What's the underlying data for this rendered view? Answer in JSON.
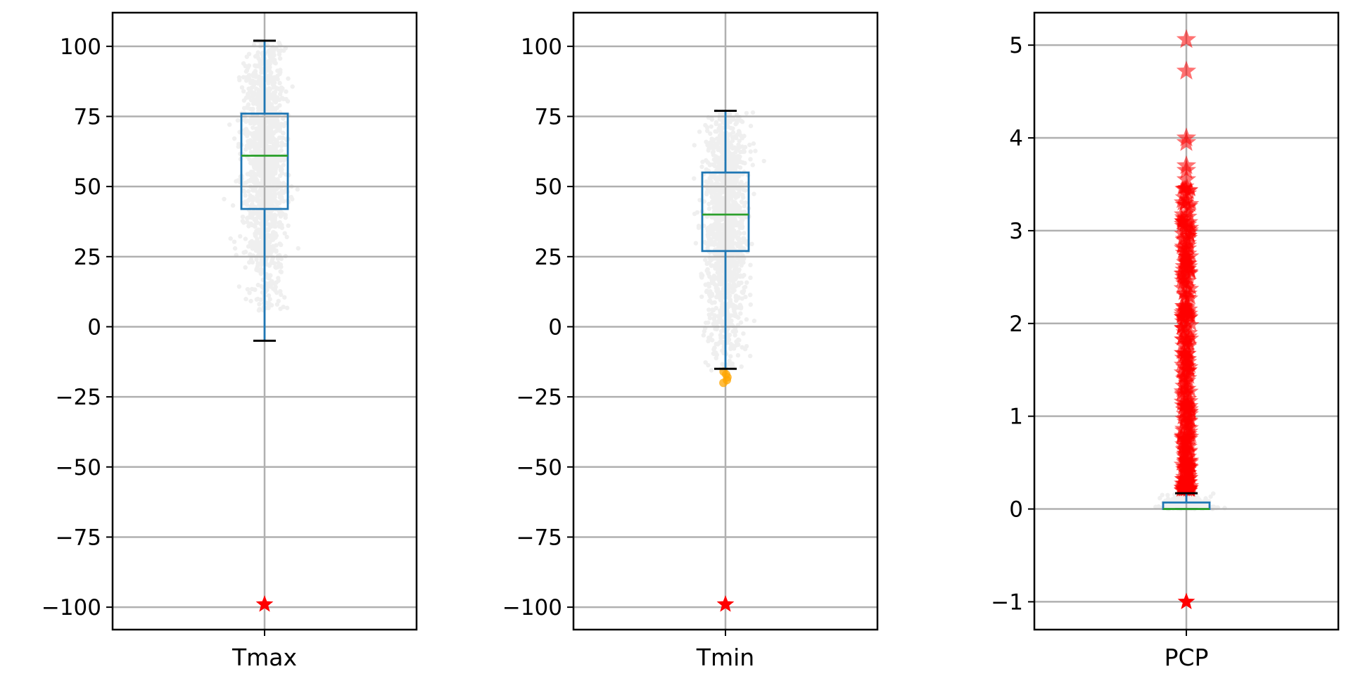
{
  "chart_data": [
    {
      "type": "box",
      "category": "Tmax",
      "ylim": [
        -108,
        112
      ],
      "yticks": [
        100,
        75,
        50,
        25,
        0,
        -25,
        -50,
        -75,
        -100
      ],
      "ytick_labels": [
        "100",
        "75",
        "50",
        "25",
        "0",
        "−25",
        "−50",
        "−75",
        "−100"
      ],
      "grid": true,
      "box": {
        "q1": 42,
        "median": 61,
        "q3": 76,
        "whisker_low": -5,
        "whisker_high": 102
      },
      "jitter_cloud": {
        "y_min": 5,
        "y_max": 102,
        "center": 60,
        "color": "#a9a9a9"
      },
      "low_points": [],
      "flagged_points": [
        -99
      ],
      "flag_marker": "star"
    },
    {
      "type": "box",
      "category": "Tmin",
      "ylim": [
        -108,
        112
      ],
      "yticks": [
        100,
        75,
        50,
        25,
        0,
        -25,
        -50,
        -75,
        -100
      ],
      "ytick_labels": [
        "100",
        "75",
        "50",
        "25",
        "0",
        "−25",
        "−50",
        "−75",
        "−100"
      ],
      "grid": true,
      "box": {
        "q1": 27,
        "median": 40,
        "q3": 55,
        "whisker_low": -15,
        "whisker_high": 77
      },
      "jitter_cloud": {
        "y_min": -16,
        "y_max": 77,
        "center": 38,
        "color": "#a9a9a9"
      },
      "low_points": [
        -16,
        -17,
        -18,
        -19,
        -20
      ],
      "flagged_points": [
        -99
      ],
      "flag_marker": "star"
    },
    {
      "type": "box",
      "category": "PCP",
      "ylim": [
        -1.3,
        5.35
      ],
      "yticks": [
        5,
        4,
        3,
        2,
        1,
        0,
        -1
      ],
      "ytick_labels": [
        "5",
        "4",
        "3",
        "2",
        "1",
        "0",
        "−1"
      ],
      "grid": true,
      "box": {
        "q1": 0.0,
        "median": 0.0,
        "q3": 0.07,
        "whisker_low": 0.0,
        "whisker_high": 0.17
      },
      "jitter_cloud": {
        "y_min": 0.0,
        "y_max": 0.17,
        "center": 0.03,
        "color": "#a9a9a9"
      },
      "low_points": [],
      "outliers_dense_range": [
        0.2,
        3.5
      ],
      "outliers": [
        3.55,
        3.65,
        3.7,
        3.95,
        4.0,
        4.72,
        5.06
      ],
      "flagged_points": [
        -1
      ],
      "flag_marker": "star"
    }
  ],
  "colors": {
    "box": "#1f77b4",
    "median": "#2ca02c",
    "whisker_cap": "#000000",
    "cloud": "#a9a9a9",
    "low_points": "#ffa500",
    "flag": "#ff0000",
    "grid": "#b0b0b0"
  }
}
